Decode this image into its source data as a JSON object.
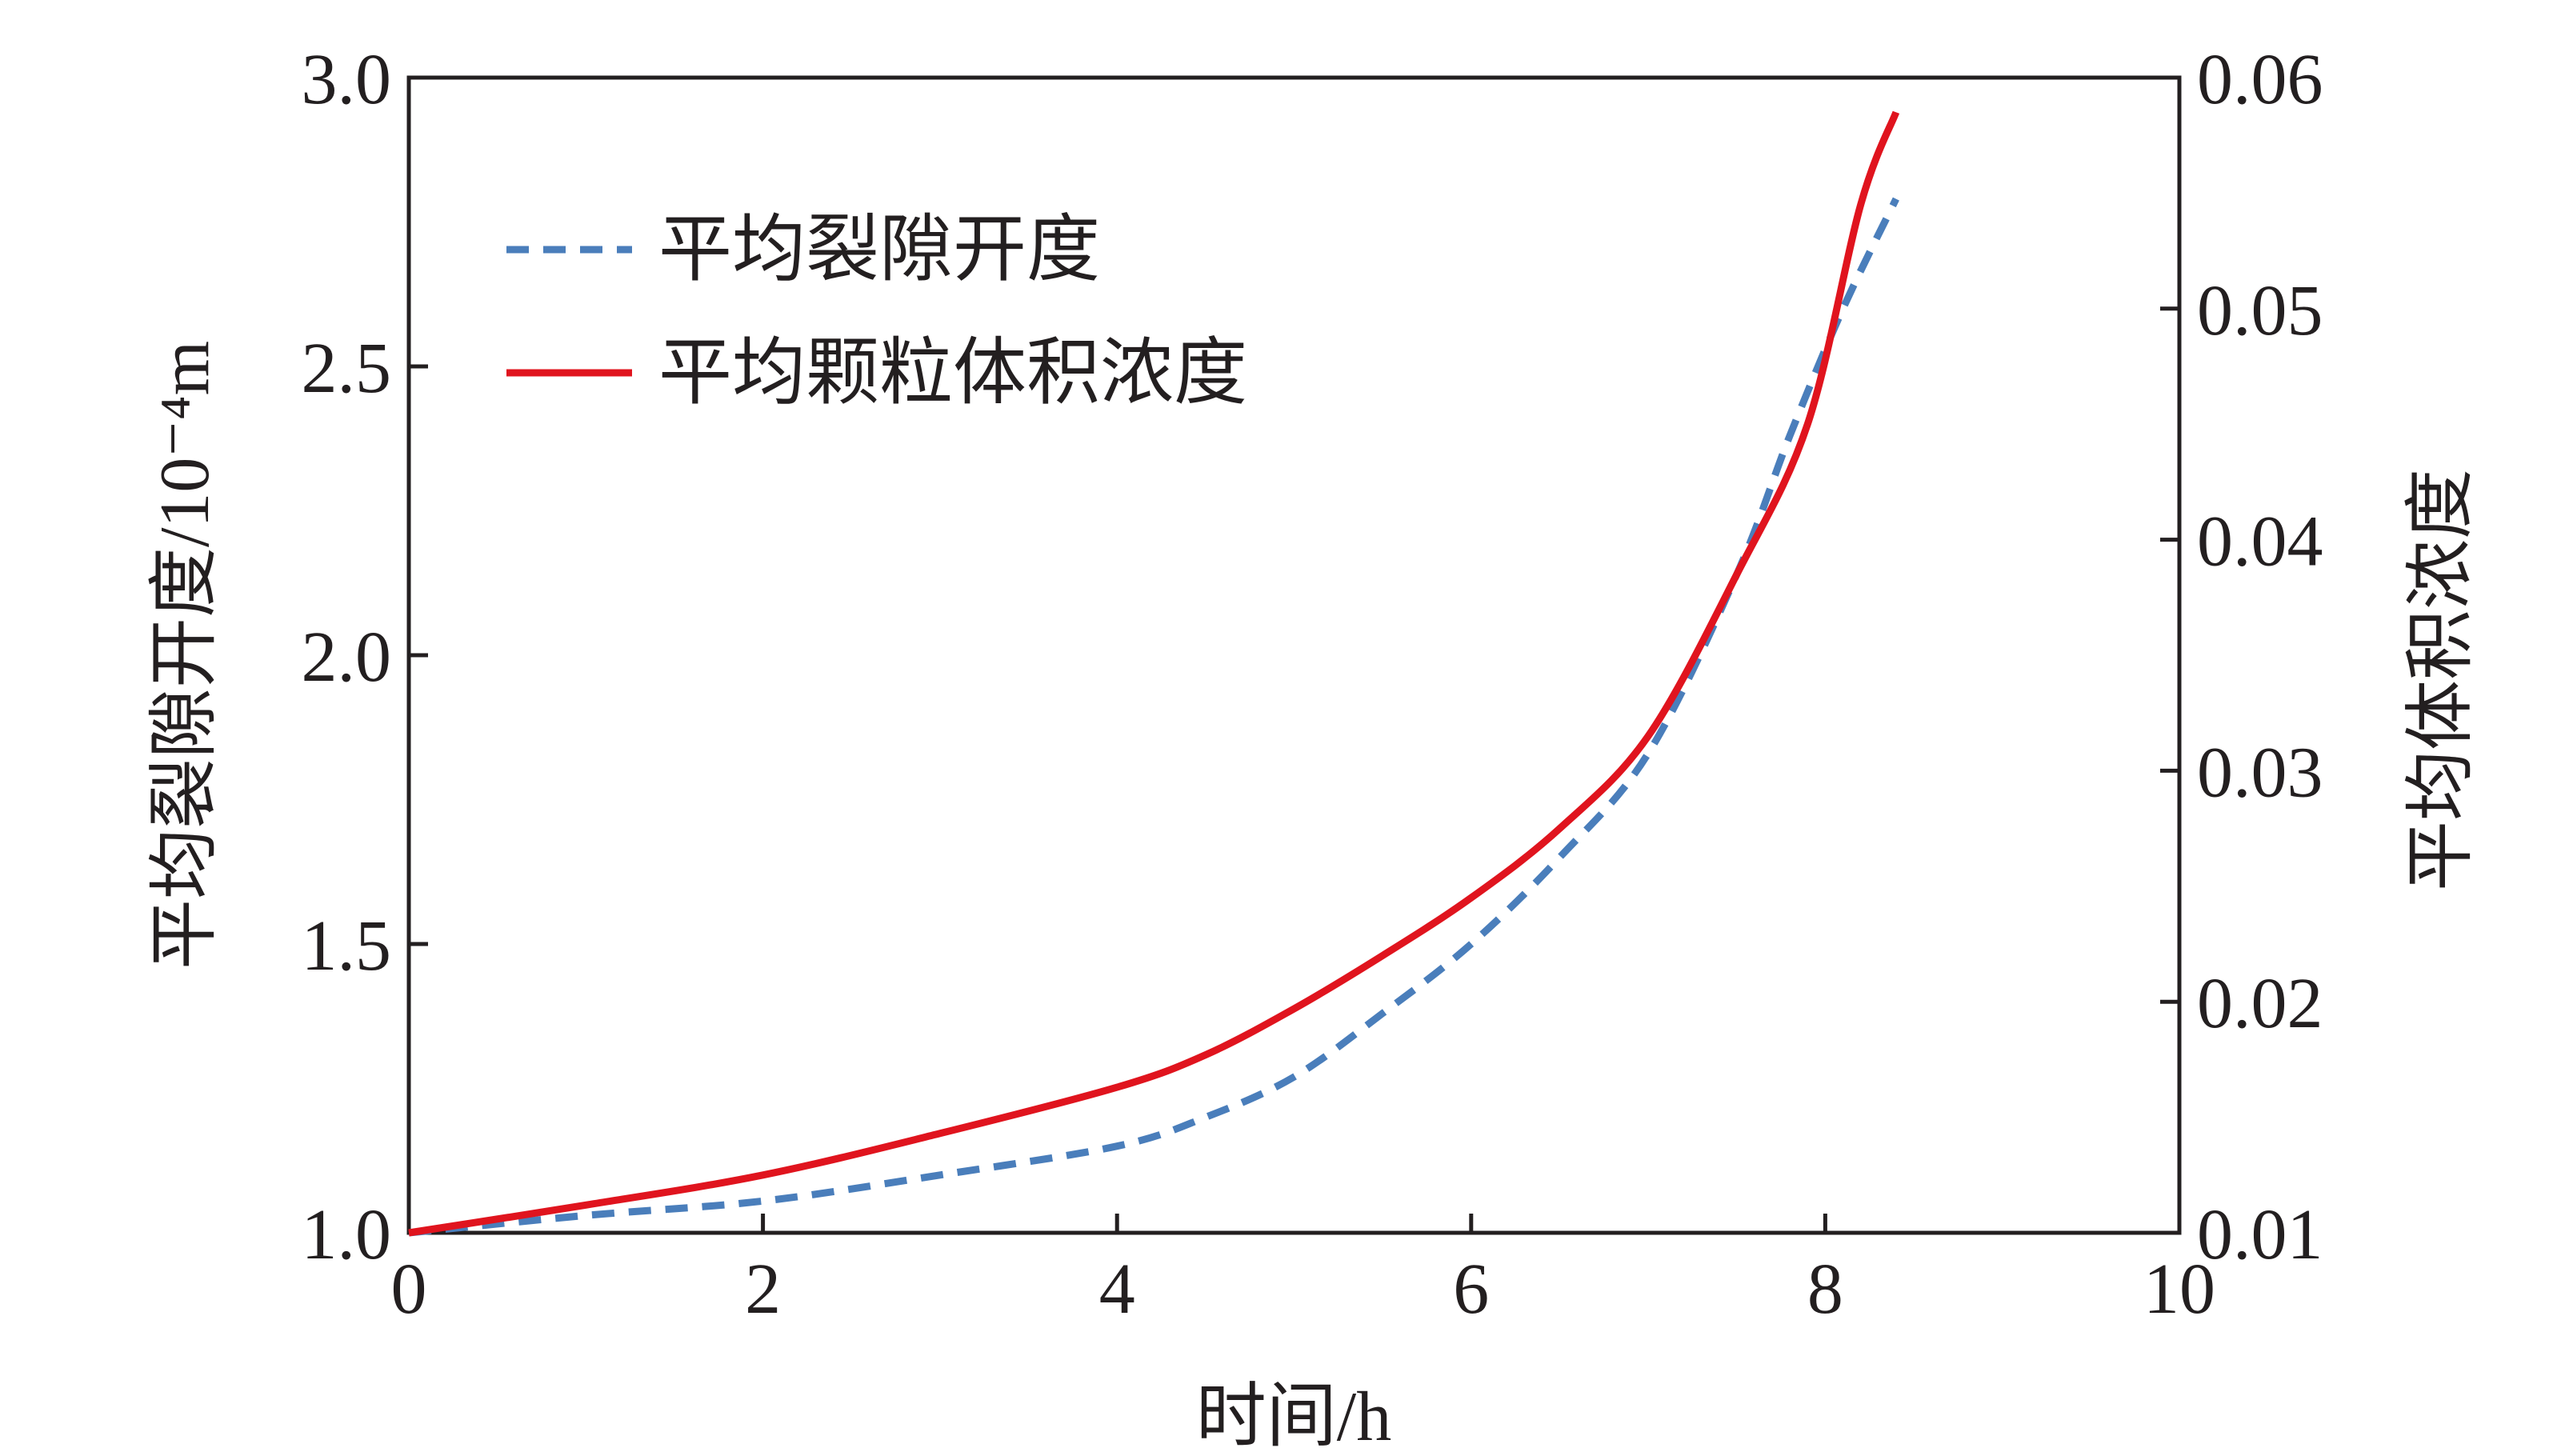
{
  "chart_data": {
    "type": "line",
    "xlabel": "时间/h",
    "ylabel_left": "平均裂隙开度/10⁻⁴m",
    "ylabel_right": "平均体积浓度",
    "xlim": [
      0,
      10
    ],
    "ylim_left": [
      1.0,
      3.0
    ],
    "ylim_right": [
      0.01,
      0.06
    ],
    "x_ticks": [
      "0",
      "2",
      "4",
      "6",
      "8",
      "10"
    ],
    "y_left_ticks": [
      "1.0",
      "1.5",
      "2.0",
      "2.5",
      "3.0"
    ],
    "y_right_ticks": [
      "0.01",
      "0.02",
      "0.03",
      "0.04",
      "0.05",
      "0.06"
    ],
    "grid": false,
    "legend_position": "top-left",
    "series": [
      {
        "name": "平均裂隙开度",
        "axis": "left",
        "style": "dashed",
        "color": "#4a7ebb",
        "x": [
          0,
          1,
          2,
          3,
          4,
          4.5,
          5,
          5.5,
          6,
          6.5,
          7,
          7.5,
          7.8,
          8.1,
          8.4
        ],
        "y": [
          1.0,
          1.03,
          1.055,
          1.1,
          1.15,
          1.2,
          1.27,
          1.38,
          1.5,
          1.65,
          1.83,
          2.14,
          2.38,
          2.6,
          2.79
        ]
      },
      {
        "name": "平均颗粒体积浓度",
        "axis": "right",
        "style": "solid",
        "color": "#e0141e",
        "x": [
          0,
          1,
          2,
          3,
          4,
          4.5,
          5,
          5.5,
          6,
          6.5,
          7,
          7.5,
          7.9,
          8.2,
          8.4
        ],
        "y": [
          0.01,
          0.0112,
          0.0125,
          0.0143,
          0.0163,
          0.0177,
          0.0197,
          0.022,
          0.0245,
          0.0275,
          0.0315,
          0.0385,
          0.045,
          0.0545,
          0.0585
        ]
      }
    ]
  }
}
